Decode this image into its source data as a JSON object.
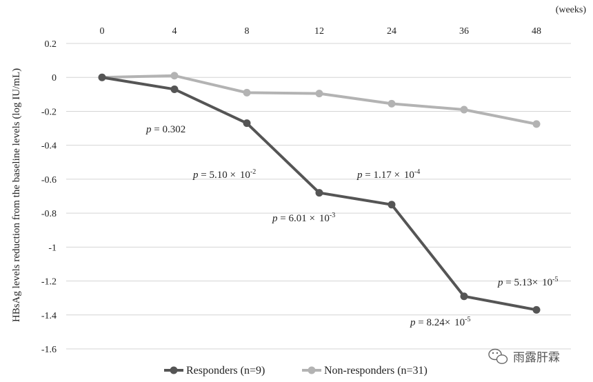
{
  "chart_data": {
    "type": "line",
    "categories": [
      "0",
      "4",
      "8",
      "12",
      "24",
      "36",
      "48"
    ],
    "x_unit": "(weeks)",
    "ylabel": "HBsAg levels reduction from the baseline levels (log IU/mL)",
    "ylim": [
      -1.6,
      0.2
    ],
    "yticks": [
      "0.2",
      "0",
      "-0.2",
      "-0.4",
      "-0.6",
      "-0.8",
      "-1",
      "-1.2",
      "-1.4",
      "-1.6"
    ],
    "grid": true,
    "legend_position": "bottom",
    "series": [
      {
        "name": "Responders (n=9)",
        "color": "#555555",
        "values": [
          0,
          -0.07,
          -0.27,
          -0.68,
          -0.75,
          -1.29,
          -1.37
        ]
      },
      {
        "name": "Non-responders (n=31)",
        "color": "#b3b3b3",
        "values": [
          0,
          0.01,
          -0.09,
          -0.095,
          -0.155,
          -0.19,
          -0.275
        ]
      }
    ],
    "annotations": [
      {
        "prefix": "p",
        "text": " = 0.302",
        "base": "",
        "exp": ""
      },
      {
        "prefix": "p",
        "text": " = 5.10 ×",
        "base": "10",
        "exp": "-2"
      },
      {
        "prefix": "p",
        "text": " = 6.01 ×",
        "base": "10",
        "exp": "-3"
      },
      {
        "prefix": "p",
        "text": " = 1.17 ×",
        "base": "10",
        "exp": "-4"
      },
      {
        "prefix": "p",
        "text": " = 8.24×",
        "base": "10",
        "exp": "-5"
      },
      {
        "prefix": "p",
        "text": " = 5.13×",
        "base": "10",
        "exp": "-5"
      }
    ]
  },
  "watermark": "雨露肝霖"
}
